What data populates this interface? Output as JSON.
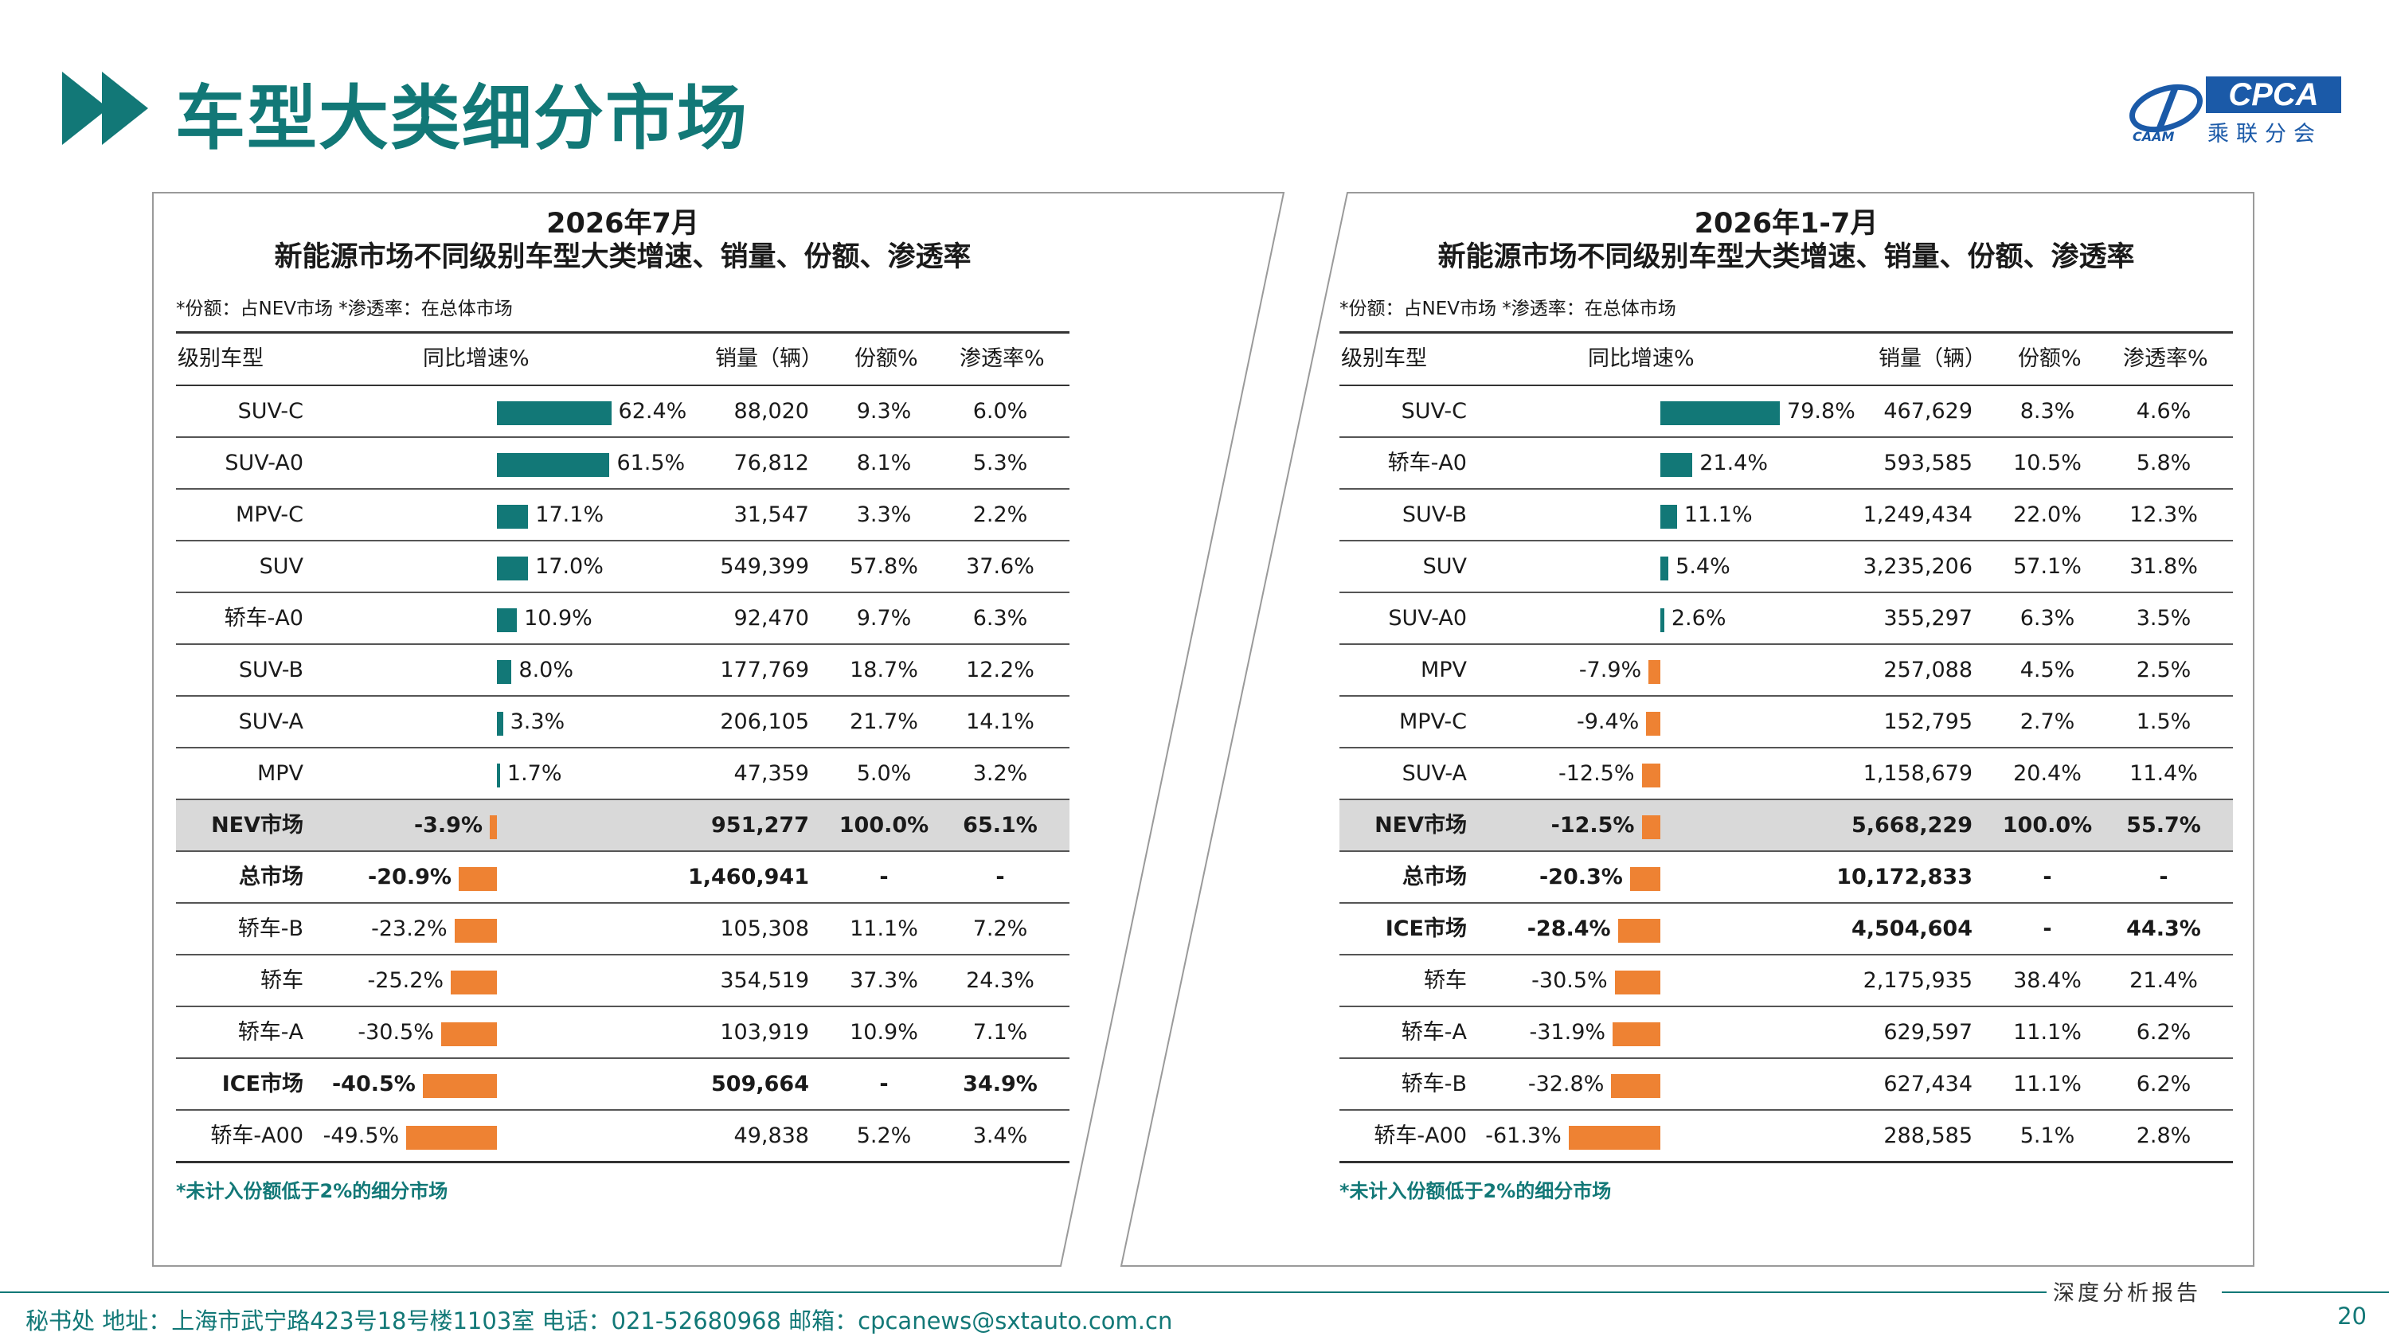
{
  "page": {
    "title": "车型大类细分市场",
    "page_number": "20",
    "footer_text": "秘书处   地址：上海市武宁路423号18号楼1103室   电话：021-52680968   邮箱：cpcanews@sxtauto.com.cn",
    "footer_right_label": "深度分析报告"
  },
  "logo": {
    "main": "CPCA",
    "sub": "乘联分会",
    "caam": "CAAM"
  },
  "colors": {
    "accent": "#127877",
    "positive_bar": "#127877",
    "negative_bar": "#ee8233",
    "highlight_row": "#d9d9d9"
  },
  "headers": {
    "type": "级别车型",
    "growth": "同比增速%",
    "sales": "销量（辆）",
    "share": "份额%",
    "penetration": "渗透率%"
  },
  "left": {
    "title_line1": "2026年7月",
    "title_line2": "新能源市场不同级别车型大类增速、销量、份额、渗透率",
    "note": "*份额：占NEV市场   *渗透率：在总体市场",
    "bottom_note": "*未计入份额低于2%的细分市场",
    "rows": [
      {
        "type": "SUV-C",
        "growth": 62.4,
        "growth_label": "62.4%",
        "sales": "88,020",
        "share": "9.3%",
        "pen": "6.0%",
        "style": ""
      },
      {
        "type": "SUV-A0",
        "growth": 61.5,
        "growth_label": "61.5%",
        "sales": "76,812",
        "share": "8.1%",
        "pen": "5.3%",
        "style": ""
      },
      {
        "type": "MPV-C",
        "growth": 17.1,
        "growth_label": "17.1%",
        "sales": "31,547",
        "share": "3.3%",
        "pen": "2.2%",
        "style": ""
      },
      {
        "type": "SUV",
        "growth": 17.0,
        "growth_label": "17.0%",
        "sales": "549,399",
        "share": "57.8%",
        "pen": "37.6%",
        "style": ""
      },
      {
        "type": "轿车-A0",
        "growth": 10.9,
        "growth_label": "10.9%",
        "sales": "92,470",
        "share": "9.7%",
        "pen": "6.3%",
        "style": ""
      },
      {
        "type": "SUV-B",
        "growth": 8.0,
        "growth_label": "8.0%",
        "sales": "177,769",
        "share": "18.7%",
        "pen": "12.2%",
        "style": ""
      },
      {
        "type": "SUV-A",
        "growth": 3.3,
        "growth_label": "3.3%",
        "sales": "206,105",
        "share": "21.7%",
        "pen": "14.1%",
        "style": ""
      },
      {
        "type": "MPV",
        "growth": 1.7,
        "growth_label": "1.7%",
        "sales": "47,359",
        "share": "5.0%",
        "pen": "3.2%",
        "style": ""
      },
      {
        "type": "NEV市场",
        "growth": -3.9,
        "growth_label": "-3.9%",
        "sales": "951,277",
        "share": "100.0%",
        "pen": "65.1%",
        "style": "hl bold"
      },
      {
        "type": "总市场",
        "growth": -20.9,
        "growth_label": "-20.9%",
        "sales": "1,460,941",
        "share": "-",
        "pen": "-",
        "style": "bold"
      },
      {
        "type": "轿车-B",
        "growth": -23.2,
        "growth_label": "-23.2%",
        "sales": "105,308",
        "share": "11.1%",
        "pen": "7.2%",
        "style": ""
      },
      {
        "type": "轿车",
        "growth": -25.2,
        "growth_label": "-25.2%",
        "sales": "354,519",
        "share": "37.3%",
        "pen": "24.3%",
        "style": ""
      },
      {
        "type": "轿车-A",
        "growth": -30.5,
        "growth_label": "-30.5%",
        "sales": "103,919",
        "share": "10.9%",
        "pen": "7.1%",
        "style": ""
      },
      {
        "type": "ICE市场",
        "growth": -40.5,
        "growth_label": "-40.5%",
        "sales": "509,664",
        "share": "-",
        "pen": "34.9%",
        "style": "bold"
      },
      {
        "type": "轿车-A00",
        "growth": -49.5,
        "growth_label": "-49.5%",
        "sales": "49,838",
        "share": "5.2%",
        "pen": "3.4%",
        "style": ""
      }
    ]
  },
  "right": {
    "title_line1": "2026年1-7月",
    "title_line2": "新能源市场不同级别车型大类增速、销量、份额、渗透率",
    "note": "*份额：占NEV市场   *渗透率：在总体市场",
    "bottom_note": "*未计入份额低于2%的细分市场",
    "rows": [
      {
        "type": "SUV-C",
        "growth": 79.8,
        "growth_label": "79.8%",
        "sales": "467,629",
        "share": "8.3%",
        "pen": "4.6%",
        "style": ""
      },
      {
        "type": "轿车-A0",
        "growth": 21.4,
        "growth_label": "21.4%",
        "sales": "593,585",
        "share": "10.5%",
        "pen": "5.8%",
        "style": ""
      },
      {
        "type": "SUV-B",
        "growth": 11.1,
        "growth_label": "11.1%",
        "sales": "1,249,434",
        "share": "22.0%",
        "pen": "12.3%",
        "style": ""
      },
      {
        "type": "SUV",
        "growth": 5.4,
        "growth_label": "5.4%",
        "sales": "3,235,206",
        "share": "57.1%",
        "pen": "31.8%",
        "style": ""
      },
      {
        "type": "SUV-A0",
        "growth": 2.6,
        "growth_label": "2.6%",
        "sales": "355,297",
        "share": "6.3%",
        "pen": "3.5%",
        "style": ""
      },
      {
        "type": "MPV",
        "growth": -7.9,
        "growth_label": "-7.9%",
        "sales": "257,088",
        "share": "4.5%",
        "pen": "2.5%",
        "style": ""
      },
      {
        "type": "MPV-C",
        "growth": -9.4,
        "growth_label": "-9.4%",
        "sales": "152,795",
        "share": "2.7%",
        "pen": "1.5%",
        "style": ""
      },
      {
        "type": "SUV-A",
        "growth": -12.5,
        "growth_label": "-12.5%",
        "sales": "1,158,679",
        "share": "20.4%",
        "pen": "11.4%",
        "style": ""
      },
      {
        "type": "NEV市场",
        "growth": -12.5,
        "growth_label": "-12.5%",
        "sales": "5,668,229",
        "share": "100.0%",
        "pen": "55.7%",
        "style": "hl bold"
      },
      {
        "type": "总市场",
        "growth": -20.3,
        "growth_label": "-20.3%",
        "sales": "10,172,833",
        "share": "-",
        "pen": "-",
        "style": "bold"
      },
      {
        "type": "ICE市场",
        "growth": -28.4,
        "growth_label": "-28.4%",
        "sales": "4,504,604",
        "share": "-",
        "pen": "44.3%",
        "style": "bold"
      },
      {
        "type": "轿车",
        "growth": -30.5,
        "growth_label": "-30.5%",
        "sales": "2,175,935",
        "share": "38.4%",
        "pen": "21.4%",
        "style": ""
      },
      {
        "type": "轿车-A",
        "growth": -31.9,
        "growth_label": "-31.9%",
        "sales": "629,597",
        "share": "11.1%",
        "pen": "6.2%",
        "style": ""
      },
      {
        "type": "轿车-B",
        "growth": -32.8,
        "growth_label": "-32.8%",
        "sales": "627,434",
        "share": "11.1%",
        "pen": "6.2%",
        "style": ""
      },
      {
        "type": "轿车-A00",
        "growth": -61.3,
        "growth_label": "-61.3%",
        "sales": "288,585",
        "share": "5.1%",
        "pen": "2.8%",
        "style": ""
      }
    ]
  }
}
